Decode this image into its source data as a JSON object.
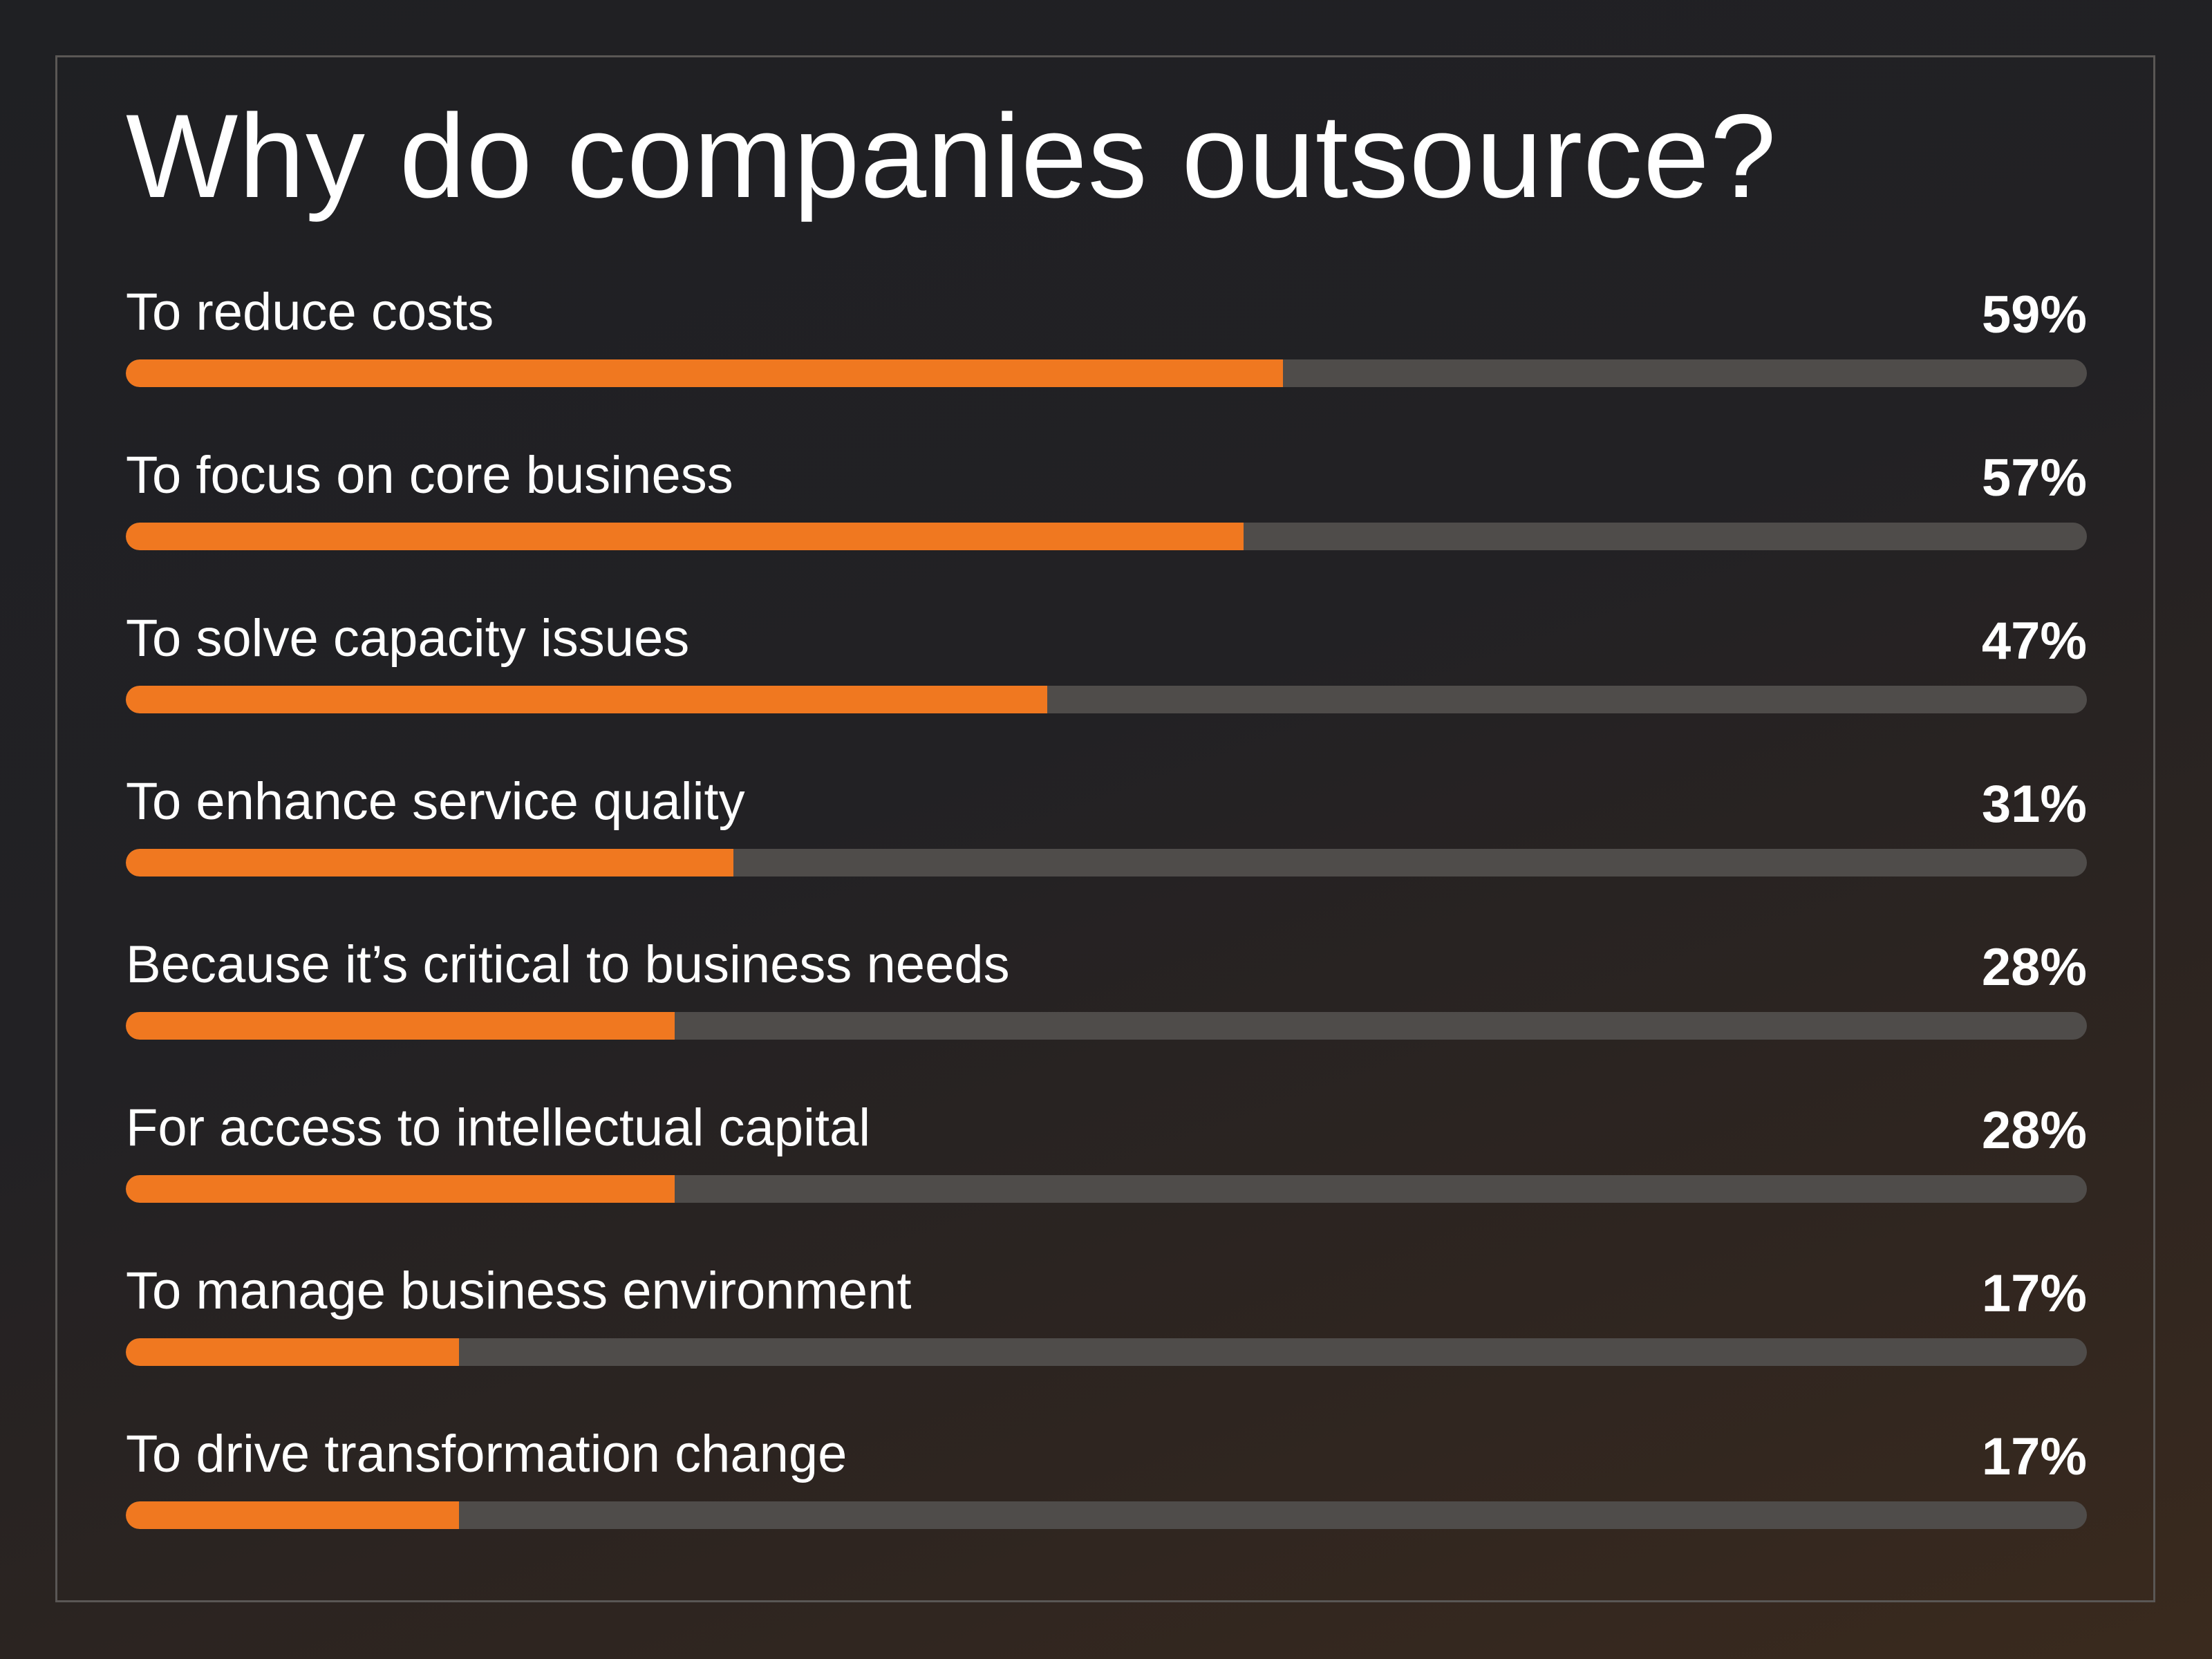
{
  "chart_data": {
    "type": "bar",
    "orientation": "horizontal",
    "title": "Why do companies outsource?",
    "categories": [
      "To reduce costs",
      "To focus on core business",
      "To solve capacity issues",
      "To enhance service quality",
      "Because it’s critical to business needs",
      "For access to intellectual capital",
      "To manage business environment",
      "To drive transformation change"
    ],
    "values": [
      59,
      57,
      47,
      31,
      28,
      28,
      17,
      17
    ],
    "value_labels": [
      "59%",
      "57%",
      "47%",
      "31%",
      "28%",
      "28%",
      "17%",
      "17%"
    ],
    "xlim": [
      0,
      100
    ],
    "grid": false,
    "colors": {
      "fill": "#f07820",
      "track": "#4f4c4a",
      "background": "#1f2023",
      "text": "#ffffff"
    }
  }
}
